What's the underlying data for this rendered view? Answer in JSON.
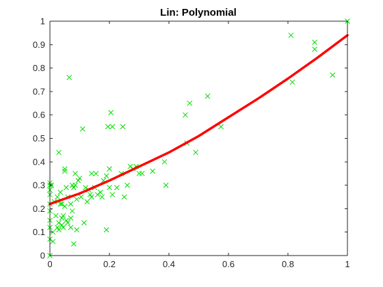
{
  "chart_data": {
    "type": "scatter",
    "title": "Lin: Polynomial",
    "xlabel": "",
    "ylabel": "",
    "xlim": [
      0,
      1
    ],
    "ylim": [
      0,
      1
    ],
    "xticks": [
      "0",
      "0.2",
      "0.4",
      "0.6",
      "0.8",
      "1"
    ],
    "yticks": [
      "0",
      "0.1",
      "0.2",
      "0.3",
      "0.4",
      "0.5",
      "0.6",
      "0.7",
      "0.8",
      "0.9",
      "1"
    ],
    "grid": false,
    "series": [
      {
        "kind": "scatter",
        "marker": "x",
        "color": "#00dd00",
        "points": [
          [
            0.0,
            0.0
          ],
          [
            0.0,
            0.31
          ],
          [
            0.0,
            0.3
          ],
          [
            0.0,
            0.28
          ],
          [
            0.0,
            0.26
          ],
          [
            0.0,
            0.22
          ],
          [
            0.0,
            0.19
          ],
          [
            0.0,
            0.15
          ],
          [
            0.0,
            0.12
          ],
          [
            0.0,
            0.07
          ],
          [
            0.005,
            0.3
          ],
          [
            0.01,
            0.1
          ],
          [
            0.01,
            0.06
          ],
          [
            0.015,
            0.23
          ],
          [
            0.02,
            0.17
          ],
          [
            0.025,
            0.25
          ],
          [
            0.025,
            0.12
          ],
          [
            0.03,
            0.44
          ],
          [
            0.03,
            0.11
          ],
          [
            0.03,
            0.14
          ],
          [
            0.035,
            0.27
          ],
          [
            0.035,
            0.22
          ],
          [
            0.04,
            0.22
          ],
          [
            0.04,
            0.16
          ],
          [
            0.04,
            0.13
          ],
          [
            0.045,
            0.12
          ],
          [
            0.045,
            0.17
          ],
          [
            0.05,
            0.37
          ],
          [
            0.05,
            0.36
          ],
          [
            0.05,
            0.21
          ],
          [
            0.055,
            0.29
          ],
          [
            0.055,
            0.15
          ],
          [
            0.06,
            0.25
          ],
          [
            0.06,
            0.14
          ],
          [
            0.065,
            0.76
          ],
          [
            0.07,
            0.22
          ],
          [
            0.07,
            0.16
          ],
          [
            0.07,
            0.12
          ],
          [
            0.075,
            0.3
          ],
          [
            0.075,
            0.19
          ],
          [
            0.08,
            0.29
          ],
          [
            0.08,
            0.05
          ],
          [
            0.085,
            0.35
          ],
          [
            0.085,
            0.3
          ],
          [
            0.09,
            0.24
          ],
          [
            0.09,
            0.11
          ],
          [
            0.095,
            0.32
          ],
          [
            0.1,
            0.33
          ],
          [
            0.105,
            0.25
          ],
          [
            0.11,
            0.54
          ],
          [
            0.115,
            0.14
          ],
          [
            0.12,
            0.29
          ],
          [
            0.125,
            0.23
          ],
          [
            0.13,
            0.28
          ],
          [
            0.135,
            0.26
          ],
          [
            0.14,
            0.35
          ],
          [
            0.14,
            0.25
          ],
          [
            0.15,
            0.29
          ],
          [
            0.155,
            0.35
          ],
          [
            0.16,
            0.26
          ],
          [
            0.17,
            0.27
          ],
          [
            0.175,
            0.25
          ],
          [
            0.18,
            0.32
          ],
          [
            0.19,
            0.34
          ],
          [
            0.19,
            0.11
          ],
          [
            0.195,
            0.55
          ],
          [
            0.2,
            0.37
          ],
          [
            0.2,
            0.29
          ],
          [
            0.205,
            0.61
          ],
          [
            0.21,
            0.55
          ],
          [
            0.21,
            0.26
          ],
          [
            0.225,
            0.29
          ],
          [
            0.24,
            0.35
          ],
          [
            0.245,
            0.55
          ],
          [
            0.25,
            0.25
          ],
          [
            0.26,
            0.3
          ],
          [
            0.27,
            0.38
          ],
          [
            0.28,
            0.37
          ],
          [
            0.29,
            0.38
          ],
          [
            0.3,
            0.35
          ],
          [
            0.31,
            0.35
          ],
          [
            0.345,
            0.36
          ],
          [
            0.385,
            0.4
          ],
          [
            0.39,
            0.3
          ],
          [
            0.455,
            0.6
          ],
          [
            0.46,
            0.48
          ],
          [
            0.47,
            0.65
          ],
          [
            0.49,
            0.44
          ],
          [
            0.53,
            0.68
          ],
          [
            0.575,
            0.55
          ],
          [
            0.81,
            0.94
          ],
          [
            0.815,
            0.74
          ],
          [
            0.89,
            0.91
          ],
          [
            0.89,
            0.88
          ],
          [
            0.95,
            0.77
          ],
          [
            1.0,
            1.0
          ]
        ]
      },
      {
        "kind": "line",
        "color": "#ff0000",
        "x": [
          0,
          0.1,
          0.2,
          0.3,
          0.4,
          0.5,
          0.6,
          0.7,
          0.8,
          0.9,
          1.0
        ],
        "y": [
          0.22,
          0.265,
          0.32,
          0.38,
          0.44,
          0.51,
          0.59,
          0.67,
          0.755,
          0.845,
          0.94
        ]
      }
    ]
  }
}
